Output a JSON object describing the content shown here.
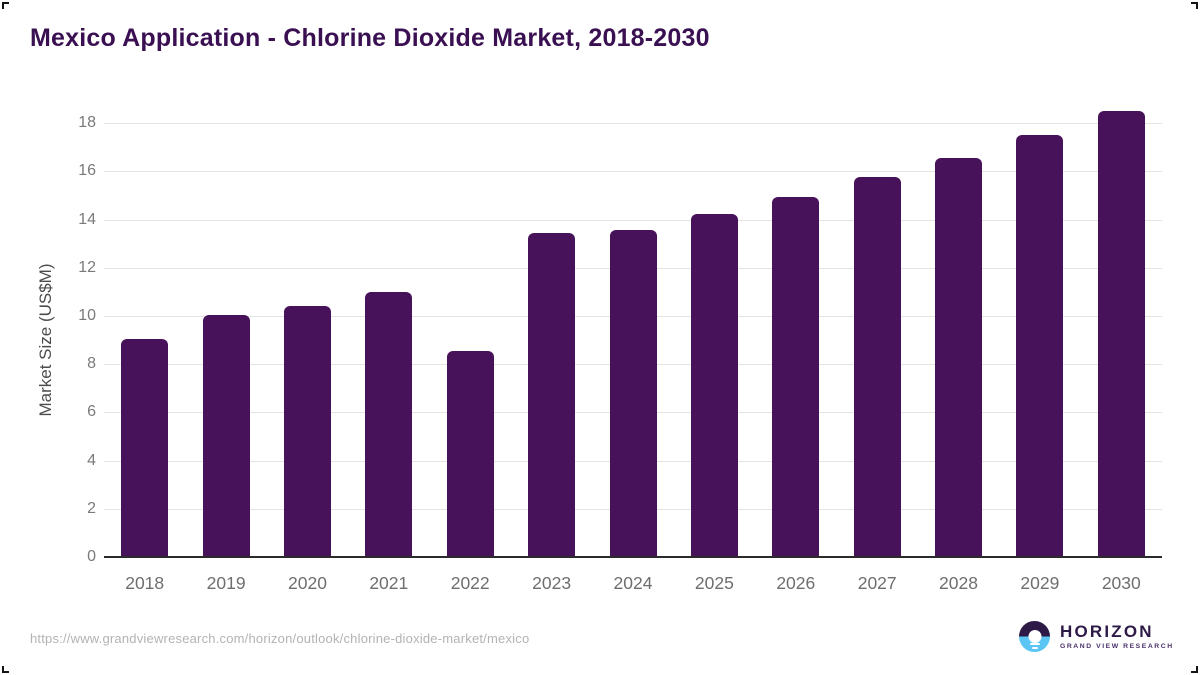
{
  "page": {
    "title": "Mexico Application - Chlorine Dioxide Market, 2018-2030"
  },
  "chart_data": {
    "type": "bar",
    "title": "Mexico Application - Chlorine Dioxide Market, 2018-2030",
    "categories": [
      "2018",
      "2019",
      "2020",
      "2021",
      "2022",
      "2023",
      "2024",
      "2025",
      "2026",
      "2027",
      "2028",
      "2029",
      "2030"
    ],
    "values": [
      9.05,
      10.05,
      10.4,
      11.0,
      8.55,
      13.45,
      13.55,
      14.25,
      14.95,
      15.75,
      16.55,
      17.5,
      18.5
    ],
    "xlabel": "",
    "ylabel": "Market Size (US$M)",
    "ylim": [
      0,
      18
    ],
    "ytick_step": 2,
    "yticks": [
      0,
      2,
      4,
      6,
      8,
      10,
      12,
      14,
      16,
      18
    ],
    "grid": true,
    "legend_position": "none",
    "bar_color": "#471259"
  },
  "footer": {
    "source_url": "https://www.grandviewresearch.com/horizon/outlook/chlorine-dioxide-market/mexico",
    "logo": {
      "brand": "HORIZON",
      "tagline": "GRAND VIEW RESEARCH"
    }
  },
  "colors": {
    "bar": "#471259",
    "title_text": "#3a1053",
    "gridline": "#e4e4e4",
    "axis_line": "#2b2b2b",
    "x_tick_text": "#6e6e6e",
    "y_tick_text": "#7a7a7a",
    "y_axis_title_text": "#4c4c4c",
    "source_url_text": "#b3b3b3",
    "logo_dark_purple": "#2e1a47",
    "logo_sky_blue": "#5bc6f3"
  }
}
